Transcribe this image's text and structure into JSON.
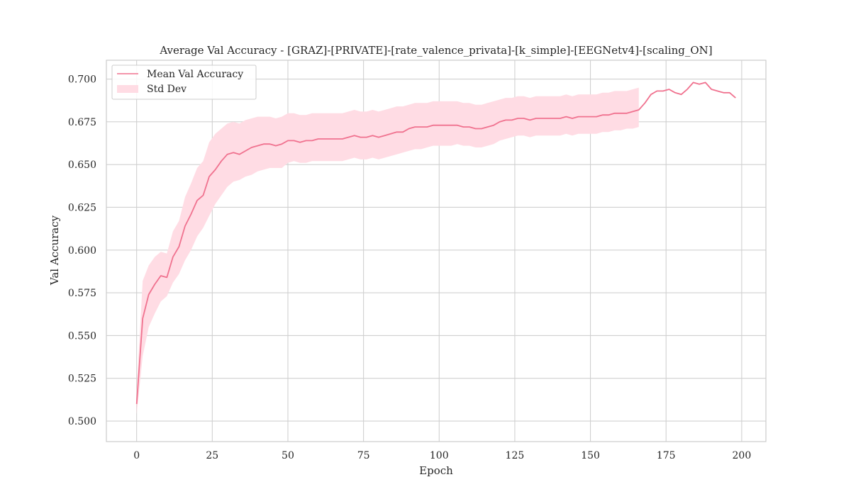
{
  "chart_data": {
    "type": "line",
    "title": "Average Val Accuracy - [GRAZ]-[PRIVATE]-[rate_valence_privata]-[k_simple]-[EEGNetv4]-[scaling_ON]",
    "xlabel": "Epoch",
    "ylabel": "Val Accuracy",
    "xlim": [
      -10,
      208
    ],
    "ylim": [
      0.488,
      0.711
    ],
    "xticks": [
      0,
      25,
      50,
      75,
      100,
      125,
      150,
      175,
      200
    ],
    "yticks": [
      0.5,
      0.525,
      0.55,
      0.575,
      0.6,
      0.625,
      0.65,
      0.675,
      0.7
    ],
    "xtick_labels": [
      "0",
      "25",
      "50",
      "75",
      "100",
      "125",
      "150",
      "175",
      "200"
    ],
    "ytick_labels": [
      "0.500",
      "0.525",
      "0.550",
      "0.575",
      "0.600",
      "0.625",
      "0.650",
      "0.675",
      "0.700"
    ],
    "grid": true,
    "legend_position": "top-left",
    "colors": {
      "line": "#f0728f",
      "band": "#ffdce4",
      "grid": "#d0d0d0",
      "axes": "#cccccc"
    },
    "series": [
      {
        "name": "Mean Val Accuracy",
        "kind": "mean",
        "x": [
          0,
          2,
          4,
          6,
          8,
          10,
          12,
          14,
          16,
          18,
          20,
          22,
          24,
          26,
          28,
          30,
          32,
          34,
          36,
          38,
          40,
          42,
          44,
          46,
          48,
          50,
          52,
          54,
          56,
          58,
          60,
          62,
          64,
          66,
          68,
          70,
          72,
          74,
          76,
          78,
          80,
          82,
          84,
          86,
          88,
          90,
          92,
          94,
          96,
          98,
          100,
          102,
          104,
          106,
          108,
          110,
          112,
          114,
          116,
          118,
          120,
          122,
          124,
          126,
          128,
          130,
          132,
          134,
          136,
          138,
          140,
          142,
          144,
          146,
          148,
          150,
          152,
          154,
          156,
          158,
          160,
          162,
          164,
          166,
          168,
          170,
          172,
          174,
          176,
          178,
          180,
          182,
          184,
          186,
          188,
          190,
          192,
          194,
          196,
          198
        ],
        "values": [
          0.51,
          0.56,
          0.574,
          0.58,
          0.585,
          0.584,
          0.596,
          0.602,
          0.614,
          0.621,
          0.629,
          0.632,
          0.643,
          0.647,
          0.652,
          0.656,
          0.657,
          0.656,
          0.658,
          0.66,
          0.661,
          0.662,
          0.662,
          0.661,
          0.662,
          0.664,
          0.664,
          0.663,
          0.664,
          0.664,
          0.665,
          0.665,
          0.665,
          0.665,
          0.665,
          0.666,
          0.667,
          0.666,
          0.666,
          0.667,
          0.666,
          0.667,
          0.668,
          0.669,
          0.669,
          0.671,
          0.672,
          0.672,
          0.672,
          0.673,
          0.673,
          0.673,
          0.673,
          0.673,
          0.672,
          0.672,
          0.671,
          0.671,
          0.672,
          0.673,
          0.675,
          0.676,
          0.676,
          0.677,
          0.677,
          0.676,
          0.677,
          0.677,
          0.677,
          0.677,
          0.677,
          0.678,
          0.677,
          0.678,
          0.678,
          0.678,
          0.678,
          0.679,
          0.679,
          0.68,
          0.68,
          0.68,
          0.681,
          0.682,
          0.686,
          0.691,
          0.693,
          0.693,
          0.694,
          0.692,
          0.691,
          0.694,
          0.698,
          0.697,
          0.698,
          0.694,
          0.693,
          0.692,
          0.692,
          0.689
        ]
      },
      {
        "name": "Std Dev",
        "kind": "band",
        "x": [
          0,
          2,
          4,
          6,
          8,
          10,
          12,
          14,
          16,
          18,
          20,
          22,
          24,
          26,
          28,
          30,
          32,
          34,
          36,
          38,
          40,
          42,
          44,
          46,
          48,
          50,
          52,
          54,
          56,
          58,
          60,
          62,
          64,
          66,
          68,
          70,
          72,
          74,
          76,
          78,
          80,
          82,
          84,
          86,
          88,
          90,
          92,
          94,
          96,
          98,
          100,
          102,
          104,
          106,
          108,
          110,
          112,
          114,
          116,
          118,
          120,
          122,
          124,
          126,
          128,
          130,
          132,
          134,
          136,
          138,
          140,
          142,
          144,
          146,
          148,
          150,
          152,
          154,
          156,
          158,
          160,
          162,
          164,
          166
        ],
        "lower": [
          0.504,
          0.538,
          0.555,
          0.563,
          0.57,
          0.573,
          0.581,
          0.586,
          0.594,
          0.6,
          0.608,
          0.613,
          0.62,
          0.627,
          0.632,
          0.637,
          0.64,
          0.641,
          0.643,
          0.644,
          0.646,
          0.647,
          0.648,
          0.648,
          0.648,
          0.651,
          0.652,
          0.651,
          0.651,
          0.652,
          0.652,
          0.652,
          0.652,
          0.652,
          0.652,
          0.653,
          0.654,
          0.653,
          0.653,
          0.654,
          0.653,
          0.654,
          0.655,
          0.656,
          0.657,
          0.658,
          0.659,
          0.659,
          0.66,
          0.661,
          0.661,
          0.661,
          0.661,
          0.662,
          0.661,
          0.661,
          0.66,
          0.66,
          0.661,
          0.662,
          0.664,
          0.665,
          0.666,
          0.667,
          0.667,
          0.666,
          0.667,
          0.667,
          0.667,
          0.667,
          0.667,
          0.668,
          0.667,
          0.668,
          0.668,
          0.668,
          0.668,
          0.669,
          0.669,
          0.67,
          0.67,
          0.671,
          0.671,
          0.672
        ],
        "upper": [
          0.518,
          0.582,
          0.591,
          0.596,
          0.599,
          0.598,
          0.611,
          0.617,
          0.631,
          0.639,
          0.648,
          0.652,
          0.663,
          0.668,
          0.671,
          0.674,
          0.675,
          0.674,
          0.676,
          0.677,
          0.678,
          0.678,
          0.678,
          0.677,
          0.678,
          0.68,
          0.68,
          0.679,
          0.679,
          0.68,
          0.68,
          0.68,
          0.68,
          0.68,
          0.68,
          0.681,
          0.682,
          0.681,
          0.681,
          0.682,
          0.681,
          0.682,
          0.683,
          0.684,
          0.684,
          0.685,
          0.686,
          0.686,
          0.686,
          0.687,
          0.687,
          0.687,
          0.687,
          0.687,
          0.686,
          0.686,
          0.685,
          0.685,
          0.686,
          0.687,
          0.688,
          0.689,
          0.689,
          0.69,
          0.69,
          0.689,
          0.69,
          0.69,
          0.69,
          0.69,
          0.69,
          0.691,
          0.69,
          0.691,
          0.691,
          0.691,
          0.691,
          0.692,
          0.692,
          0.693,
          0.693,
          0.693,
          0.694,
          0.695
        ]
      }
    ]
  }
}
